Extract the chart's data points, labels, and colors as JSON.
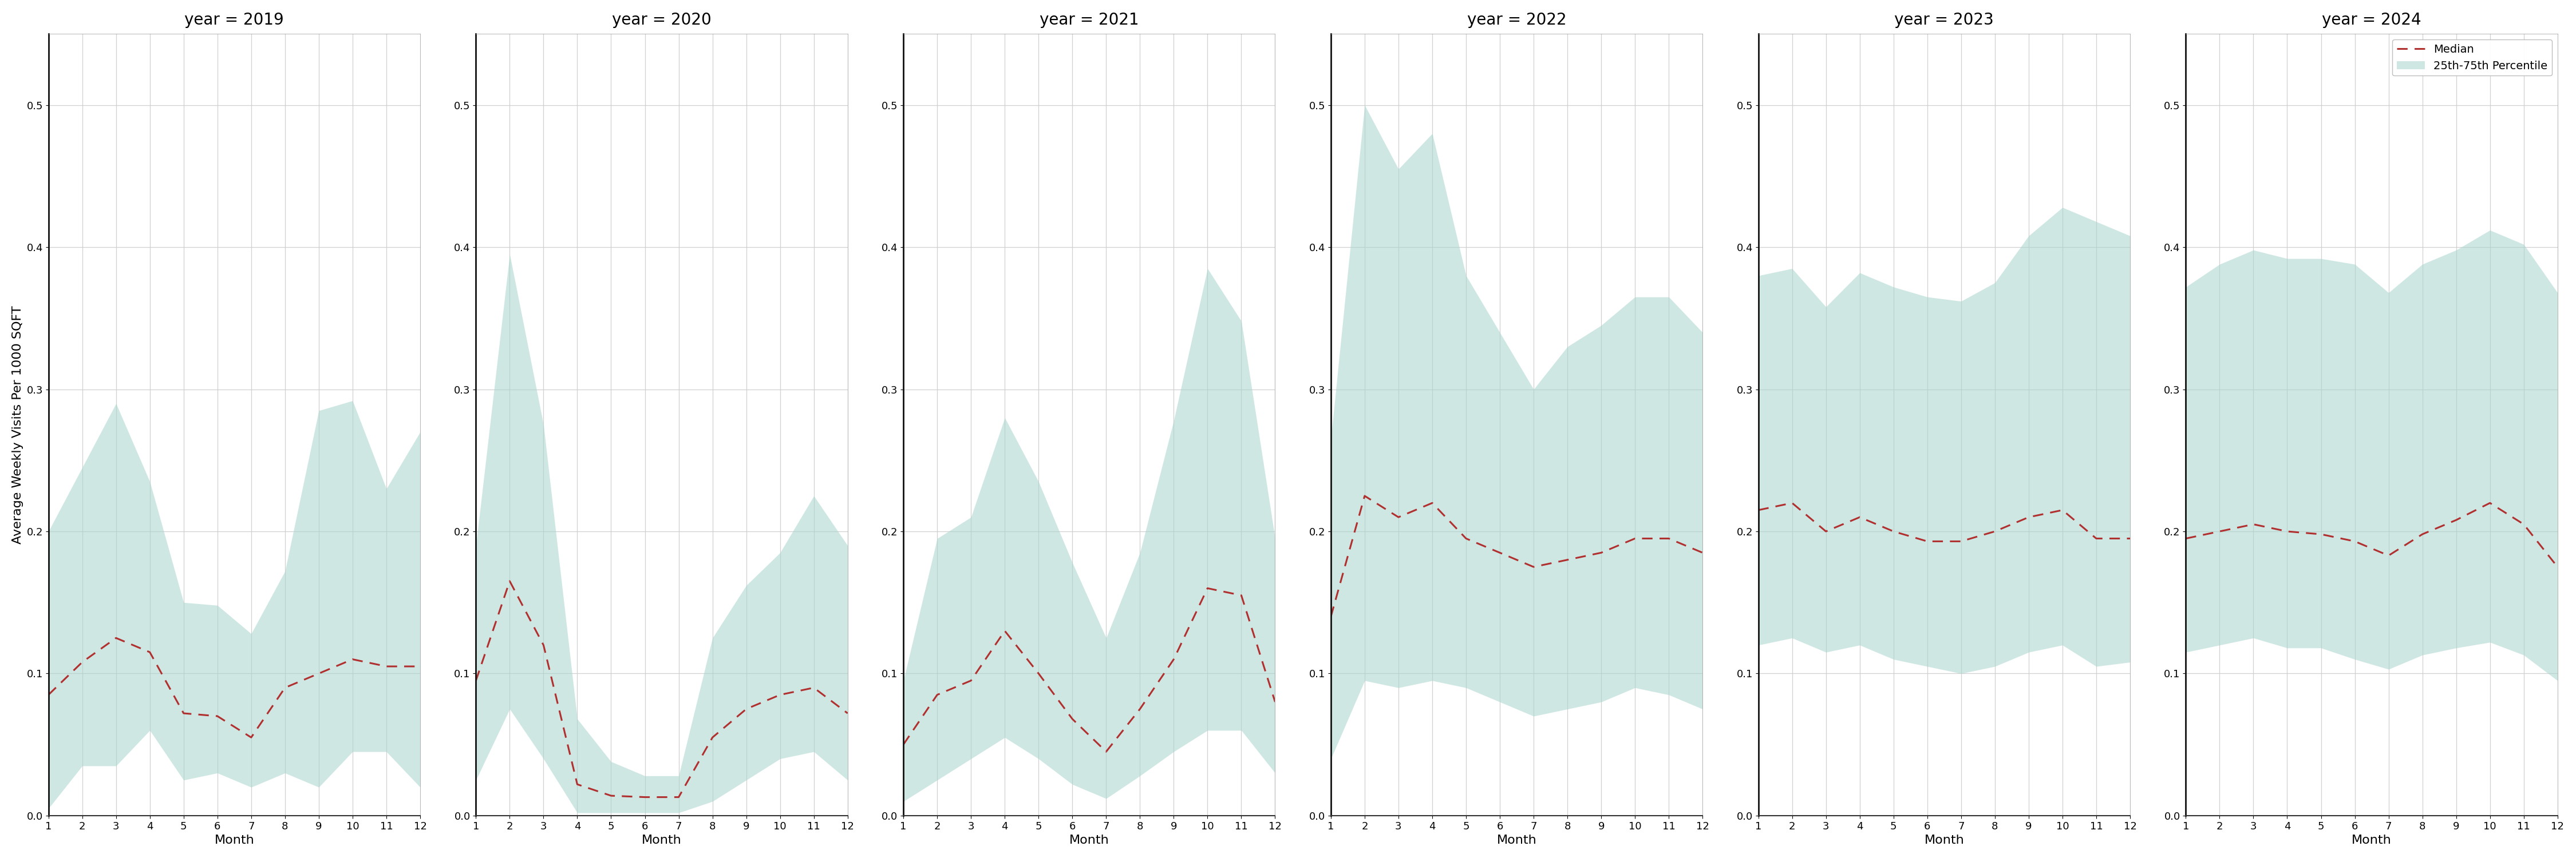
{
  "years": [
    2019,
    2020,
    2021,
    2022,
    2023,
    2024
  ],
  "months": [
    1,
    2,
    3,
    4,
    5,
    6,
    7,
    8,
    9,
    10,
    11,
    12
  ],
  "median": {
    "2019": [
      0.085,
      0.108,
      0.125,
      0.115,
      0.072,
      0.07,
      0.055,
      0.09,
      0.1,
      0.11,
      0.105,
      0.105
    ],
    "2020": [
      0.095,
      0.165,
      0.12,
      0.022,
      0.014,
      0.013,
      0.013,
      0.055,
      0.075,
      0.085,
      0.09,
      0.072
    ],
    "2021": [
      0.05,
      0.085,
      0.095,
      0.13,
      0.1,
      0.068,
      0.045,
      0.075,
      0.11,
      0.16,
      0.155,
      0.08
    ],
    "2022": [
      0.14,
      0.225,
      0.21,
      0.22,
      0.195,
      0.185,
      0.175,
      0.18,
      0.185,
      0.195,
      0.195,
      0.185
    ],
    "2023": [
      0.215,
      0.22,
      0.2,
      0.21,
      0.2,
      0.193,
      0.193,
      0.2,
      0.21,
      0.215,
      0.195,
      0.195
    ],
    "2024": [
      0.195,
      0.2,
      0.205,
      0.2,
      0.198,
      0.193,
      0.183,
      0.198,
      0.208,
      0.22,
      0.205,
      0.175
    ]
  },
  "q25": {
    "2019": [
      0.005,
      0.035,
      0.035,
      0.06,
      0.025,
      0.03,
      0.02,
      0.03,
      0.02,
      0.045,
      0.045,
      0.02
    ],
    "2020": [
      0.025,
      0.075,
      0.04,
      0.002,
      0.002,
      0.002,
      0.002,
      0.01,
      0.025,
      0.04,
      0.045,
      0.025
    ],
    "2021": [
      0.01,
      0.025,
      0.04,
      0.055,
      0.04,
      0.022,
      0.012,
      0.028,
      0.045,
      0.06,
      0.06,
      0.03
    ],
    "2022": [
      0.04,
      0.095,
      0.09,
      0.095,
      0.09,
      0.08,
      0.07,
      0.075,
      0.08,
      0.09,
      0.085,
      0.075
    ],
    "2023": [
      0.12,
      0.125,
      0.115,
      0.12,
      0.11,
      0.105,
      0.1,
      0.105,
      0.115,
      0.12,
      0.105,
      0.108
    ],
    "2024": [
      0.115,
      0.12,
      0.125,
      0.118,
      0.118,
      0.11,
      0.103,
      0.113,
      0.118,
      0.122,
      0.113,
      0.095
    ]
  },
  "q75": {
    "2019": [
      0.2,
      0.245,
      0.29,
      0.235,
      0.15,
      0.148,
      0.128,
      0.172,
      0.285,
      0.292,
      0.23,
      0.27
    ],
    "2020": [
      0.19,
      0.395,
      0.275,
      0.068,
      0.038,
      0.028,
      0.028,
      0.125,
      0.162,
      0.185,
      0.225,
      0.19
    ],
    "2021": [
      0.095,
      0.195,
      0.21,
      0.28,
      0.235,
      0.178,
      0.125,
      0.185,
      0.278,
      0.385,
      0.348,
      0.195
    ],
    "2022": [
      0.265,
      0.5,
      0.455,
      0.48,
      0.38,
      0.34,
      0.3,
      0.33,
      0.345,
      0.365,
      0.365,
      0.34
    ],
    "2023": [
      0.38,
      0.385,
      0.358,
      0.382,
      0.372,
      0.365,
      0.362,
      0.375,
      0.408,
      0.428,
      0.418,
      0.408
    ],
    "2024": [
      0.372,
      0.388,
      0.398,
      0.392,
      0.392,
      0.388,
      0.368,
      0.388,
      0.398,
      0.412,
      0.402,
      0.368
    ]
  },
  "ylim": [
    0.0,
    0.55
  ],
  "yticks": [
    0.0,
    0.1,
    0.2,
    0.3,
    0.4,
    0.5
  ],
  "xlabel": "Month",
  "ylabel": "Average Weekly Visits Per 1000 SQFT",
  "fill_color": "#a8d5cc",
  "fill_alpha": 0.55,
  "line_color": "#b03030",
  "line_style": "--",
  "line_width": 2.2,
  "background_color": "#ffffff",
  "grid_color": "#d0d0d0",
  "title_prefix": "year = ",
  "legend_median": "Median",
  "legend_fill": "25th-75th Percentile"
}
